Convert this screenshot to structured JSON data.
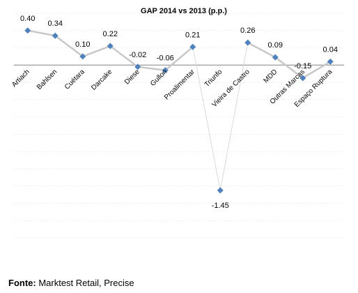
{
  "chart_data": {
    "type": "line",
    "title": "GAP 2014 vs 2013 (p.p.)",
    "categories": [
      "Artiach",
      "Bahlsen",
      "Cuétara",
      "Darcake",
      "Diese",
      "Gullon",
      "Proalimentar",
      "Triunfo",
      "Vieira de Castro",
      "MDD",
      "Outras Marcas",
      "Espaço Ruptura"
    ],
    "values": [
      0.4,
      0.34,
      0.1,
      0.22,
      -0.02,
      -0.06,
      0.21,
      -1.45,
      0.26,
      0.09,
      -0.15,
      0.04
    ],
    "value_labels": [
      "0.40",
      "0.34",
      "0.10",
      "0.22",
      "-0.02",
      "-0.06",
      "0.21",
      "-1.45",
      "0.26",
      "0.09",
      "-0.15",
      "0.04"
    ],
    "xlabel": "",
    "ylabel": "",
    "ylim": [
      -2.0,
      0.6
    ],
    "grid": true,
    "legend": "none",
    "line_color": "#c8c8c8",
    "thin_line_color": "#d9d9d9",
    "marker_color": "#4f81bd",
    "grid_color": "#d9d9d9",
    "axis_color": "#808080"
  },
  "source": {
    "label": "Fonte:",
    "text": " Marktest Retail, Precise"
  }
}
